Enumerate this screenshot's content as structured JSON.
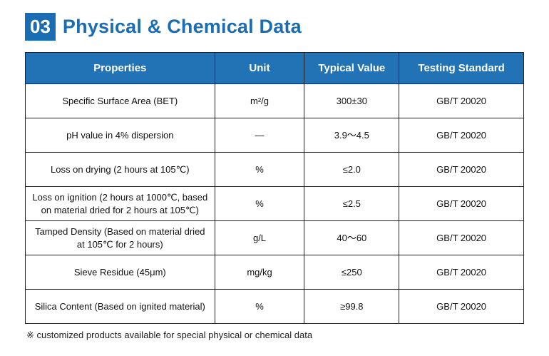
{
  "header": {
    "number": "03",
    "title": "Physical & Chemical Data"
  },
  "colors": {
    "accent_blue": "#1a6cb3",
    "table_header_blue": "#2273b6",
    "border": "#222222"
  },
  "table": {
    "headers": [
      "Properties",
      "Unit",
      "Typical Value",
      "Testing Standard"
    ],
    "rows": [
      {
        "property": "Specific Surface Area (BET)",
        "unit": "m²/g",
        "typical_value": "300±30",
        "testing_standard": "GB/T 20020"
      },
      {
        "property": "pH value in 4% dispersion",
        "unit": "—",
        "typical_value": "3.9～4.5",
        "testing_standard": "GB/T 20020"
      },
      {
        "property": "Loss on drying (2 hours at 105℃)",
        "unit": "%",
        "typical_value": "≤2.0",
        "testing_standard": "GB/T 20020"
      },
      {
        "property": "Loss on ignition (2 hours at 1000℃,  based on material dried for 2 hours at 105℃)",
        "unit": "%",
        "typical_value": "≤2.5",
        "testing_standard": "GB/T 20020"
      },
      {
        "property": "Tamped Density (Based on material dried at 105℃ for 2 hours)",
        "unit": "g/L",
        "typical_value": "40～60",
        "testing_standard": "GB/T 20020"
      },
      {
        "property": "Sieve Residue (45μm)",
        "unit": "mg/kg",
        "typical_value": "≤250",
        "testing_standard": "GB/T 20020"
      },
      {
        "property": "Silica Content (Based on ignited material)",
        "unit": "%",
        "typical_value": "≥99.8",
        "testing_standard": "GB/T 20020"
      }
    ]
  },
  "footer": {
    "note": "※ customized products available for special physical or chemical data"
  }
}
